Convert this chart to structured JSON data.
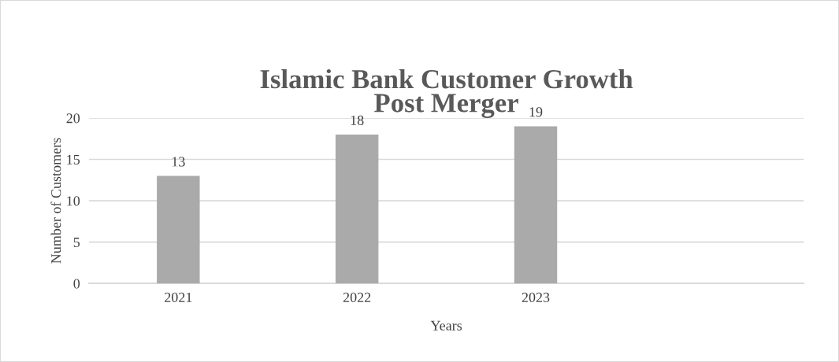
{
  "chart_data": {
    "type": "bar",
    "title": "Islamic Bank Customer Growth\nPost Merger",
    "xlabel": "Years",
    "ylabel": "Number of Customers",
    "categories": [
      "2021",
      "2022",
      "2023",
      null
    ],
    "values": [
      13,
      18,
      19,
      null
    ],
    "color": "#aaaaaa",
    "ylim": [
      0,
      20
    ],
    "yticks": [
      0,
      5,
      10,
      15,
      20
    ],
    "grid": "y",
    "data_labels": true,
    "legend": false
  }
}
